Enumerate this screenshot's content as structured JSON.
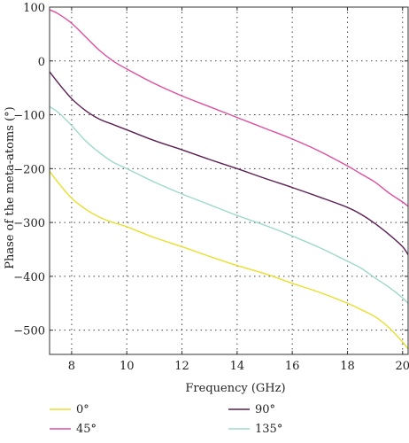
{
  "chart_data": {
    "type": "line",
    "xlabel": "Frequency (GHz)",
    "ylabel": "Phase of the meta-atoms (°)",
    "xlim": [
      7.2,
      20.2
    ],
    "ylim": [
      -545,
      100
    ],
    "xticks": [
      8,
      10,
      12,
      14,
      16,
      18,
      20
    ],
    "yticks": [
      100,
      0,
      -100,
      -200,
      -300,
      -400,
      -500
    ],
    "xtick_labels": [
      "8",
      "10",
      "12",
      "14",
      "16",
      "18",
      "20"
    ],
    "ytick_labels": [
      "100",
      "0",
      "−100",
      "−200",
      "−300",
      "−400",
      "−500"
    ],
    "grid": true,
    "legend_position": "bottom",
    "series": [
      {
        "name": "0°",
        "color": "#e8df2c",
        "x": [
          7.2,
          7.5,
          8,
          8.5,
          9,
          9.5,
          10,
          11,
          12,
          13,
          14,
          15,
          16,
          17,
          18,
          18.5,
          19,
          19.5,
          20,
          20.2
        ],
        "y": [
          -205,
          -225,
          -255,
          -275,
          -290,
          -300,
          -308,
          -328,
          -345,
          -363,
          -380,
          -395,
          -413,
          -430,
          -450,
          -462,
          -475,
          -495,
          -522,
          -535
        ]
      },
      {
        "name": "45°",
        "color": "#de4fa0",
        "x": [
          7.2,
          7.5,
          8,
          8.5,
          9,
          9.5,
          10,
          11,
          12,
          13,
          14,
          15,
          16,
          17,
          18,
          18.5,
          19,
          19.5,
          20,
          20.2
        ],
        "y": [
          95,
          88,
          70,
          45,
          20,
          0,
          -15,
          -42,
          -65,
          -85,
          -105,
          -125,
          -145,
          -168,
          -195,
          -210,
          -225,
          -245,
          -262,
          -270
        ]
      },
      {
        "name": "90°",
        "color": "#5c1f55",
        "x": [
          7.2,
          7.5,
          8,
          8.5,
          9,
          9.5,
          10,
          11,
          12,
          13,
          14,
          15,
          16,
          17,
          18,
          18.5,
          19,
          19.5,
          20,
          20.2
        ],
        "y": [
          -20,
          -40,
          -70,
          -92,
          -108,
          -118,
          -128,
          -148,
          -165,
          -183,
          -200,
          -218,
          -235,
          -253,
          -272,
          -285,
          -302,
          -322,
          -345,
          -360
        ]
      },
      {
        "name": "135°",
        "color": "#9ed9cc",
        "x": [
          7.2,
          7.5,
          8,
          8.5,
          9,
          9.5,
          10,
          11,
          12,
          13,
          14,
          15,
          16,
          17,
          18,
          18.5,
          19,
          19.5,
          20,
          20.2
        ],
        "y": [
          -85,
          -95,
          -120,
          -148,
          -170,
          -188,
          -200,
          -225,
          -247,
          -267,
          -287,
          -305,
          -325,
          -347,
          -372,
          -385,
          -403,
          -420,
          -440,
          -450
        ]
      }
    ]
  }
}
